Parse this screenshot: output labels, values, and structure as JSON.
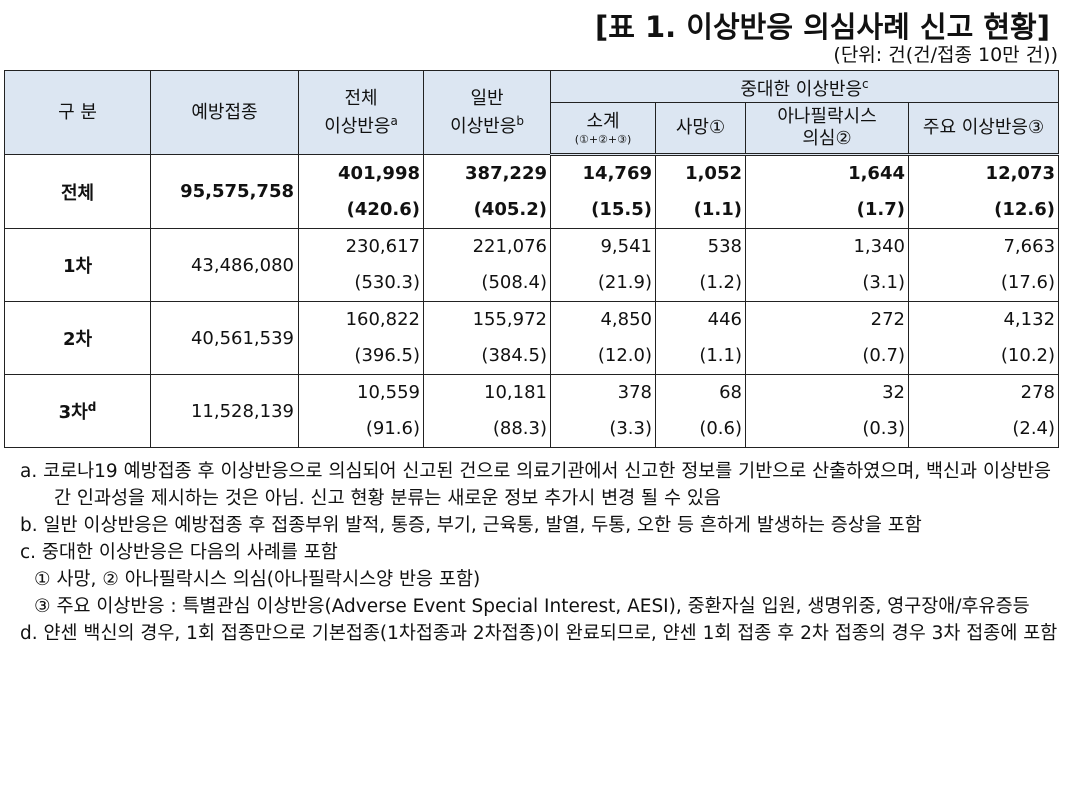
{
  "title": "[표 1. 이상반응 의심사례 신고 현황]",
  "unit": "(단위: 건(건/접종 10만 건))",
  "table": {
    "columns": [
      {
        "lines": [
          "구 분"
        ]
      },
      {
        "lines": [
          "예방접종"
        ]
      },
      {
        "lines": [
          "전체",
          "이상반응"
        ],
        "sup": "a"
      },
      {
        "lines": [
          "일반",
          "이상반응"
        ],
        "sup": "b"
      }
    ],
    "group": {
      "text": "중대한 이상반응",
      "sup": "c"
    },
    "subcolumns": [
      {
        "lines": [
          "소계"
        ],
        "sub": "(①+②+③)"
      },
      {
        "lines": [
          "사망①"
        ]
      },
      {
        "lines": [
          "아나필락시스",
          "의심②"
        ]
      },
      {
        "lines": [
          "주요 이상반응③"
        ]
      }
    ],
    "rows": [
      {
        "label": "전체",
        "vaccinated": "95,575,758",
        "values": [
          {
            "count": "401,998",
            "rate": "(420.6)"
          },
          {
            "count": "387,229",
            "rate": "(405.2)"
          },
          {
            "count": "14,769",
            "rate": "(15.5)"
          },
          {
            "count": "1,052",
            "rate": "(1.1)"
          },
          {
            "count": "1,644",
            "rate": "(1.7)"
          },
          {
            "count": "12,073",
            "rate": "(12.6)"
          }
        ]
      },
      {
        "label": "1차",
        "vaccinated": "43,486,080",
        "values": [
          {
            "count": "230,617",
            "rate": "(530.3)"
          },
          {
            "count": "221,076",
            "rate": "(508.4)"
          },
          {
            "count": "9,541",
            "rate": "(21.9)"
          },
          {
            "count": "538",
            "rate": "(1.2)"
          },
          {
            "count": "1,340",
            "rate": "(3.1)"
          },
          {
            "count": "7,663",
            "rate": "(17.6)"
          }
        ]
      },
      {
        "label": "2차",
        "vaccinated": "40,561,539",
        "values": [
          {
            "count": "160,822",
            "rate": "(396.5)"
          },
          {
            "count": "155,972",
            "rate": "(384.5)"
          },
          {
            "count": "4,850",
            "rate": "(12.0)"
          },
          {
            "count": "446",
            "rate": "(1.1)"
          },
          {
            "count": "272",
            "rate": "(0.7)"
          },
          {
            "count": "4,132",
            "rate": "(10.2)"
          }
        ]
      },
      {
        "label": "3차",
        "label_sup": "d",
        "vaccinated": "11,528,139",
        "values": [
          {
            "count": "10,559",
            "rate": "(91.6)"
          },
          {
            "count": "10,181",
            "rate": "(88.3)"
          },
          {
            "count": "378",
            "rate": "(3.3)"
          },
          {
            "count": "68",
            "rate": "(0.6)"
          },
          {
            "count": "32",
            "rate": "(0.3)"
          },
          {
            "count": "278",
            "rate": "(2.4)"
          }
        ]
      }
    ]
  },
  "notes": [
    "a. 코로나19 예방접종 후 이상반응으로 의심되어 신고된 건으로 의료기관에서 신고한 정보를 기반으로 산출하였으며, 백신과 이상반응 간 인과성을 제시하는 것은 아님. 신고 현황 분류는 새로운 정보 추가시 변경 될 수 있음",
    "b. 일반 이상반응은 예방접종 후 접종부위 발적, 통증, 부기, 근육통, 발열, 두통, 오한 등 흔하게 발생하는 증상을 포함",
    "c. 중대한 이상반응은 다음의 사례를 포함",
    "① 사망, ② 아나필락시스 의심(아나필락시스양 반응 포함)",
    "③ 주요 이상반응 : 특별관심 이상반응(Adverse Event Special Interest, AESI), 중환자실 입원, 생명위중, 영구장애/후유증등",
    "d. 얀센 백신의 경우, 1회 접종만으로 기본접종(1차접종과 2차접종)이 완료되므로, 얀센 1회 접종 후 2차 접종의 경우 3차 접종에 포함"
  ]
}
